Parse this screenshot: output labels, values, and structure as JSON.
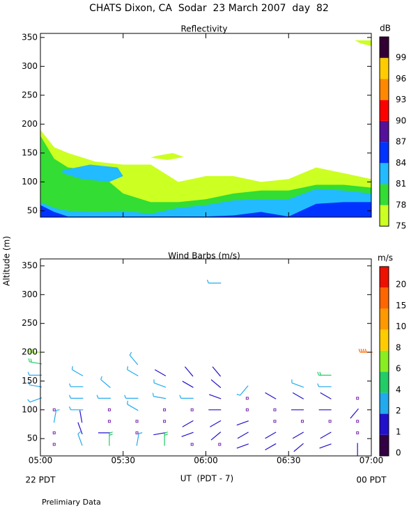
{
  "title": "CHATS Dixon, CA  Sodar  23 March 2007  day  82",
  "ylabel": "Altitude (m)",
  "xlabel": "UT  (PDT - 7)",
  "x_start": "22 PDT",
  "x_end": "00 PDT",
  "note": "Prelimiary Data",
  "chart_data": [
    {
      "type": "contour",
      "title": "Reflectivity",
      "xlim": [
        300,
        420
      ],
      "ylim": [
        39,
        357
      ],
      "yticks": [
        50,
        100,
        150,
        200,
        250,
        300,
        350
      ],
      "x": [
        300,
        305,
        310,
        320,
        330,
        340,
        350,
        360,
        370,
        380,
        390,
        400,
        410,
        420
      ],
      "boundaries": [
        [
          190,
          160,
          150,
          135,
          130,
          130,
          100,
          110,
          110,
          100,
          105,
          125,
          115,
          105
        ],
        [
          180,
          140,
          125,
          120,
          80,
          65,
          65,
          70,
          80,
          85,
          85,
          95,
          95,
          90
        ],
        [
          65,
          55,
          50,
          48,
          50,
          45,
          55,
          60,
          68,
          70,
          70,
          88,
          85,
          80
        ],
        [
          60,
          48,
          40,
          40,
          40,
          40,
          40,
          40,
          42,
          48,
          40,
          62,
          65,
          65
        ]
      ],
      "patches": [
        {
          "level": 81,
          "x": [
            308,
            318,
            328,
            330,
            325,
            315,
            308
          ],
          "y": [
            120,
            130,
            125,
            110,
            100,
            105,
            115
          ]
        },
        {
          "level": 75,
          "x": [
            342,
            348,
            352,
            346,
            340
          ],
          "y": [
            145,
            150,
            143,
            138,
            142
          ]
        },
        {
          "level": 75,
          "x": [
            414,
            420,
            420,
            416
          ],
          "y": [
            345,
            345,
            335,
            340
          ]
        }
      ],
      "colorbar": {
        "label": "dB",
        "levels": [
          75,
          78,
          81,
          84,
          87,
          90,
          93,
          96,
          99
        ],
        "colors": [
          "#ccff22",
          "#33dd33",
          "#22bbff",
          "#0033ff",
          "#551199",
          "#ff0000",
          "#ff8800",
          "#ffcc00",
          "#330033"
        ]
      }
    },
    {
      "type": "barbs",
      "title": "Wind Barbs (m/s)",
      "xlim": [
        300,
        420
      ],
      "ylim": [
        20,
        362
      ],
      "yticks": [
        50,
        100,
        150,
        200,
        250,
        300,
        350
      ],
      "xticks": [
        {
          "value": 300,
          "label": "05:00"
        },
        {
          "value": 330,
          "label": "05:30"
        },
        {
          "value": 360,
          "label": "06:00"
        },
        {
          "value": 390,
          "label": "06:30"
        },
        {
          "value": 420,
          "label": "07:00"
        }
      ],
      "x": [
        300,
        300,
        300,
        300,
        300,
        305,
        305,
        305,
        305,
        315,
        315,
        315,
        315,
        315,
        315,
        315,
        325,
        325,
        325,
        325,
        325,
        325,
        335,
        335,
        335,
        335,
        335,
        335,
        335,
        345,
        345,
        345,
        345,
        345,
        345,
        345,
        355,
        355,
        355,
        355,
        355,
        355,
        355,
        365,
        365,
        365,
        365,
        365,
        365,
        365,
        365,
        375,
        375,
        375,
        375,
        375,
        375,
        385,
        385,
        385,
        385,
        385,
        395,
        395,
        395,
        395,
        395,
        395,
        405,
        405,
        405,
        405,
        405,
        405,
        405,
        415,
        415,
        415,
        415,
        415,
        420
      ],
      "y": [
        200,
        180,
        160,
        140,
        120,
        100,
        80,
        60,
        40,
        160,
        140,
        120,
        100,
        80,
        60,
        40,
        140,
        120,
        100,
        80,
        60,
        40,
        180,
        160,
        120,
        100,
        80,
        60,
        40,
        160,
        140,
        120,
        100,
        80,
        60,
        40,
        160,
        140,
        120,
        100,
        80,
        60,
        40,
        320,
        160,
        140,
        120,
        100,
        80,
        60,
        40,
        140,
        120,
        100,
        80,
        60,
        40,
        120,
        100,
        80,
        60,
        40,
        140,
        120,
        100,
        80,
        60,
        40,
        160,
        140,
        120,
        100,
        80,
        60,
        40,
        120,
        100,
        80,
        60,
        40,
        200
      ],
      "speed": [
        6,
        4,
        3,
        3,
        3,
        0.5,
        2,
        0.5,
        0.5,
        3,
        3,
        3,
        2,
        1.5,
        1.5,
        2,
        2,
        2,
        0.5,
        0.5,
        1.2,
        4,
        3,
        2,
        3,
        3,
        0.5,
        0.5,
        2,
        1.5,
        2,
        2,
        0.5,
        0.5,
        1.5,
        4,
        1.5,
        1.5,
        2,
        0.5,
        1.5,
        1.5,
        0.5,
        3,
        1.5,
        1.5,
        1.5,
        1.5,
        1.5,
        1.5,
        0.5,
        2,
        0.5,
        0.5,
        1.5,
        1.5,
        1.5,
        1.5,
        0.5,
        0.5,
        1.5,
        1.5,
        2,
        1.5,
        1.5,
        0.5,
        1.5,
        1.5,
        4,
        3,
        1.5,
        1.5,
        0.5,
        1.5,
        1.5,
        0.5,
        1.5,
        0.5,
        0.5,
        1.5,
        15
      ],
      "direction": [
        270,
        280,
        270,
        280,
        250,
        null,
        10,
        null,
        null,
        300,
        270,
        270,
        270,
        350,
        340,
        340,
        310,
        270,
        null,
        null,
        270,
        0,
        320,
        300,
        270,
        300,
        null,
        null,
        10,
        300,
        290,
        280,
        null,
        null,
        260,
        0,
        320,
        300,
        270,
        null,
        240,
        250,
        null,
        270,
        320,
        310,
        290,
        270,
        240,
        230,
        null,
        220,
        null,
        null,
        250,
        240,
        250,
        300,
        null,
        null,
        240,
        240,
        290,
        300,
        270,
        null,
        240,
        230,
        270,
        270,
        300,
        270,
        null,
        240,
        250,
        null,
        220,
        null,
        null,
        180,
        270
      ],
      "colorbar": {
        "label": "m/s",
        "levels": [
          0,
          1,
          2,
          4,
          6,
          8,
          10,
          15,
          20
        ],
        "colors": [
          "#330044",
          "#2211cc",
          "#22aaee",
          "#22cc66",
          "#88ee22",
          "#ffcc00",
          "#ff9900",
          "#ff6600",
          "#ee1100"
        ]
      }
    }
  ]
}
